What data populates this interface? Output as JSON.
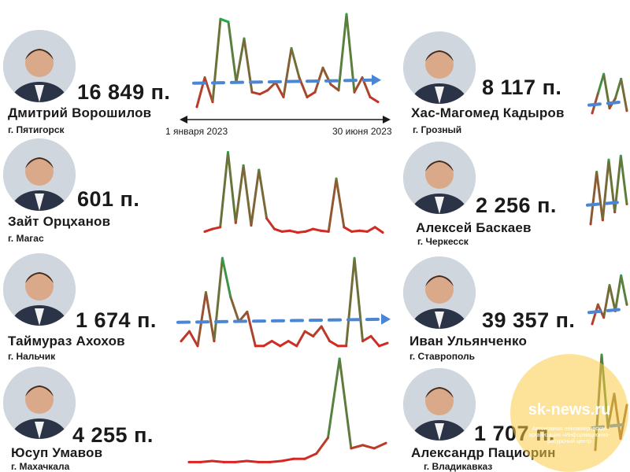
{
  "people": [
    {
      "name": "Дмитрий Ворошилов",
      "city": "г. Пятигорск",
      "count": "16 849 п.",
      "photo": "avatar-voroshilov"
    },
    {
      "name": "Хас-Магомед Кадыров",
      "city": "г. Грозный",
      "count": "8 117 п.",
      "photo": "avatar-kadyrov"
    },
    {
      "name": "Зайт Орцханов",
      "city": "г. Магас",
      "count": "601 п.",
      "photo": "avatar-ortskhanov"
    },
    {
      "name": "Алексей Баскаев",
      "city": "г. Черкесск",
      "count": "2 256 п.",
      "photo": "avatar-baskaev"
    },
    {
      "name": "Таймураз Ахохов",
      "city": "г. Нальчик",
      "count": "1 674 п.",
      "photo": "avatar-akhokhov"
    },
    {
      "name": "Иван Ульянченко",
      "city": "г. Ставрополь",
      "count": "39 357 п.",
      "photo": "avatar-ulyanchenko"
    },
    {
      "name": "Юсуп Умавов",
      "city": "г. Махачкала",
      "count": "4 255 п.",
      "photo": "avatar-umavov"
    },
    {
      "name": "Александр Пациорин",
      "city": "г. Владикавказ",
      "count": "1 707 п.",
      "photo": "avatar-patsiorin"
    }
  ],
  "timeline": {
    "start": "1 января 2023",
    "end": "30 июня 2023"
  },
  "colors": {
    "high": "#1fa84a",
    "low": "#e02020",
    "trend": "#4a86d4",
    "text": "#1a1a1a",
    "watermark": "#f9c846"
  },
  "watermark": {
    "site": "sk-news.ru",
    "org": "Автономная некоммерческая организация «Информационно-ресурсный центр"
  },
  "chart_data": [
    {
      "type": "line",
      "name": "Дмитрий Ворошилов",
      "scale": "relative",
      "ylim": [
        0,
        1
      ],
      "trend": true,
      "x": [
        0,
        1,
        2,
        3,
        4,
        5,
        6,
        7,
        8,
        9,
        10,
        11,
        12,
        13,
        14,
        15,
        16,
        17,
        18,
        19,
        20,
        21,
        22,
        23
      ],
      "values": [
        0.05,
        0.35,
        0.1,
        0.95,
        0.92,
        0.3,
        0.75,
        0.2,
        0.18,
        0.22,
        0.3,
        0.15,
        0.65,
        0.35,
        0.15,
        0.2,
        0.45,
        0.28,
        0.22,
        1.0,
        0.2,
        0.35,
        0.15,
        0.1
      ]
    },
    {
      "type": "line",
      "name": "Хас-Магомед Кадыров",
      "scale": "relative",
      "ylim": [
        0,
        1
      ],
      "trend": true,
      "partial": true,
      "x": [
        0,
        1,
        2,
        3,
        4,
        5,
        6
      ],
      "values": [
        0.1,
        0.5,
        0.9,
        0.2,
        0.4,
        0.8,
        0.15
      ]
    },
    {
      "type": "line",
      "name": "Зайт Орцханов",
      "scale": "relative",
      "ylim": [
        0,
        1
      ],
      "trend": false,
      "x": [
        0,
        1,
        2,
        3,
        4,
        5,
        6,
        7,
        8,
        9,
        10,
        11,
        12,
        13,
        14,
        15,
        16,
        17,
        18,
        19,
        20,
        21,
        22,
        23
      ],
      "values": [
        0.05,
        0.08,
        0.1,
        0.95,
        0.15,
        0.8,
        0.12,
        0.75,
        0.2,
        0.08,
        0.05,
        0.06,
        0.04,
        0.05,
        0.08,
        0.06,
        0.05,
        0.65,
        0.1,
        0.05,
        0.06,
        0.05,
        0.1,
        0.04
      ]
    },
    {
      "type": "line",
      "name": "Алексей Баскаев",
      "scale": "relative",
      "ylim": [
        0,
        1
      ],
      "trend": true,
      "partial": true,
      "x": [
        0,
        1,
        2,
        3,
        4,
        5,
        6
      ],
      "values": [
        0.05,
        0.7,
        0.1,
        0.85,
        0.2,
        0.9,
        0.3
      ]
    },
    {
      "type": "line",
      "name": "Таймураз Ахохов",
      "scale": "relative",
      "ylim": [
        0,
        1
      ],
      "trend": true,
      "x": [
        0,
        1,
        2,
        3,
        4,
        5,
        6,
        7,
        8,
        9,
        10,
        11,
        12,
        13,
        14,
        15,
        16,
        17,
        18,
        19,
        20,
        21,
        22,
        23,
        24,
        25
      ],
      "values": [
        0.1,
        0.2,
        0.05,
        0.6,
        0.1,
        0.95,
        0.55,
        0.3,
        0.4,
        0.05,
        0.05,
        0.1,
        0.05,
        0.1,
        0.05,
        0.2,
        0.15,
        0.25,
        0.1,
        0.05,
        0.05,
        0.95,
        0.1,
        0.15,
        0.05,
        0.08
      ]
    },
    {
      "type": "line",
      "name": "Иван Ульянченко",
      "scale": "relative",
      "ylim": [
        0,
        1
      ],
      "trend": true,
      "partial": true,
      "x": [
        0,
        1,
        2,
        3,
        4,
        5,
        6
      ],
      "values": [
        0.1,
        0.4,
        0.2,
        0.7,
        0.3,
        0.85,
        0.4
      ]
    },
    {
      "type": "line",
      "name": "Юсуп Умавов",
      "scale": "relative",
      "ylim": [
        0,
        1
      ],
      "trend": false,
      "x": [
        0,
        1,
        2,
        3,
        4,
        5,
        6,
        7,
        8,
        9,
        10,
        11,
        12,
        13,
        14,
        15,
        16,
        17
      ],
      "values": [
        0.02,
        0.02,
        0.03,
        0.02,
        0.02,
        0.03,
        0.02,
        0.02,
        0.03,
        0.05,
        0.05,
        0.1,
        0.25,
        1.0,
        0.15,
        0.18,
        0.15,
        0.2
      ]
    },
    {
      "type": "line",
      "name": "Александр Пациорин",
      "scale": "relative",
      "ylim": [
        0,
        1
      ],
      "trend": true,
      "partial": true,
      "x": [
        0,
        1,
        2,
        3,
        4,
        5
      ],
      "values": [
        0.1,
        0.95,
        0.3,
        0.6,
        0.2,
        0.5
      ]
    }
  ]
}
